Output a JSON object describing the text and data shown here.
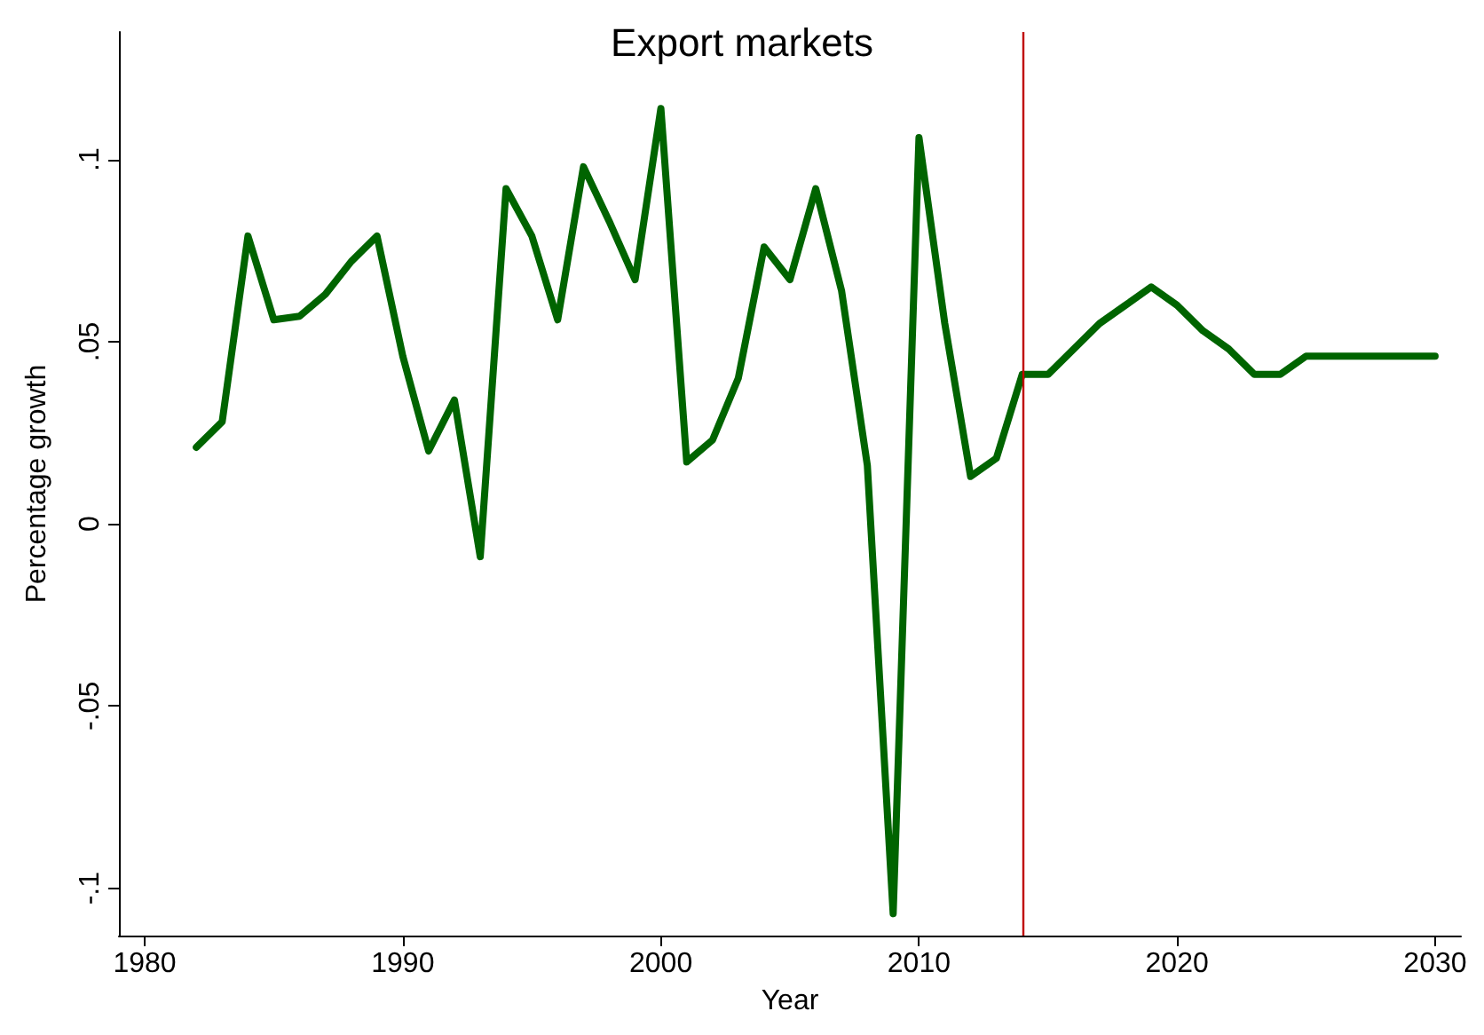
{
  "chart_data": {
    "type": "line",
    "title": "Export markets",
    "xlabel": "Year",
    "ylabel": "Percentage growth",
    "x": [
      1982,
      1983,
      1984,
      1985,
      1986,
      1987,
      1988,
      1989,
      1990,
      1991,
      1992,
      1993,
      1994,
      1995,
      1996,
      1997,
      1998,
      1999,
      2000,
      2001,
      2002,
      2003,
      2004,
      2005,
      2006,
      2007,
      2008,
      2009,
      2010,
      2011,
      2012,
      2013,
      2014,
      2015,
      2016,
      2017,
      2018,
      2019,
      2020,
      2021,
      2022,
      2023,
      2024,
      2025,
      2026,
      2027,
      2028,
      2029,
      2030
    ],
    "series": [
      {
        "color": "#006400",
        "values": [
          0.021,
          0.028,
          0.079,
          0.056,
          0.057,
          0.063,
          0.072,
          0.079,
          0.046,
          0.02,
          0.034,
          -0.009,
          0.092,
          0.079,
          0.056,
          0.098,
          0.083,
          0.067,
          0.114,
          0.017,
          0.023,
          0.04,
          0.076,
          0.067,
          0.092,
          0.064,
          0.016,
          -0.107,
          0.106,
          0.055,
          0.013,
          0.018,
          0.041,
          0.041,
          0.048,
          0.055,
          0.06,
          0.065,
          0.06,
          0.053,
          0.048,
          0.041,
          0.041,
          0.046,
          0.046,
          0.046,
          0.046,
          0.046,
          0.046
        ]
      }
    ],
    "xlim": [
      1979,
      2031
    ],
    "xticks": [
      1980,
      1990,
      2000,
      2010,
      2020,
      2030
    ],
    "ylim": [
      -0.113,
      0.135
    ],
    "yticks": [
      {
        "value": -0.1,
        "label": "-.1"
      },
      {
        "value": -0.05,
        "label": "-.05"
      },
      {
        "value": 0,
        "label": "0"
      },
      {
        "value": 0.05,
        "label": ".05"
      },
      {
        "value": 0.1,
        "label": ".1"
      }
    ],
    "ref_lines": [
      {
        "axis": "x",
        "value": 2014,
        "color": "#c00000"
      }
    ],
    "grid": false,
    "marker": "none",
    "line_style": "solid"
  }
}
